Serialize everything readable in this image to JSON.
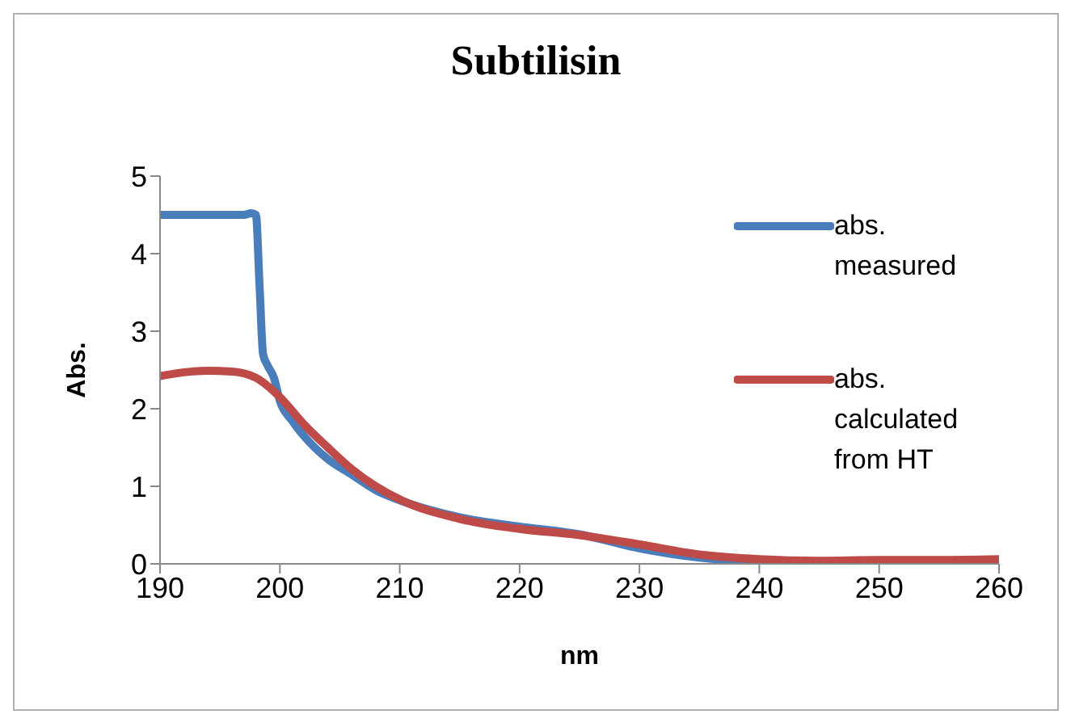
{
  "chart_data": {
    "type": "line",
    "title": "Subtilisin",
    "xlabel": "nm",
    "ylabel": "Abs.",
    "xlim": [
      190,
      260
    ],
    "xticks": [
      190,
      200,
      210,
      220,
      230,
      240,
      250,
      260
    ],
    "ylim": [
      0,
      5
    ],
    "yticks": [
      0,
      1,
      2,
      3,
      4,
      5
    ],
    "grid": false,
    "legend": "right",
    "marker": "none",
    "line_style": "solid",
    "series": [
      {
        "name": "abs. measured",
        "color": "#4a7ebb",
        "x": [
          190,
          192,
          194,
          196,
          197,
          197.6,
          198,
          198.3,
          198.6,
          199,
          199.5,
          200,
          201,
          202,
          204,
          206,
          208,
          210,
          215,
          220,
          225,
          230,
          235,
          240
        ],
        "values": [
          4.5,
          4.5,
          4.5,
          4.5,
          4.5,
          4.52,
          4.5,
          3.6,
          2.7,
          2.55,
          2.4,
          2.1,
          1.85,
          1.65,
          1.35,
          1.15,
          0.95,
          0.82,
          0.6,
          0.48,
          0.38,
          0.2,
          0.08,
          0.03
        ]
      },
      {
        "name": "abs. calculated from HT",
        "color": "#be4b48",
        "x": [
          190,
          192,
          194,
          196,
          198,
          200,
          202,
          204,
          206,
          208,
          210,
          215,
          220,
          225,
          230,
          235,
          240,
          245,
          250,
          255,
          260
        ],
        "values": [
          2.42,
          2.47,
          2.49,
          2.48,
          2.4,
          2.15,
          1.8,
          1.5,
          1.22,
          1.0,
          0.83,
          0.58,
          0.45,
          0.37,
          0.25,
          0.12,
          0.06,
          0.04,
          0.05,
          0.05,
          0.06
        ]
      }
    ]
  }
}
